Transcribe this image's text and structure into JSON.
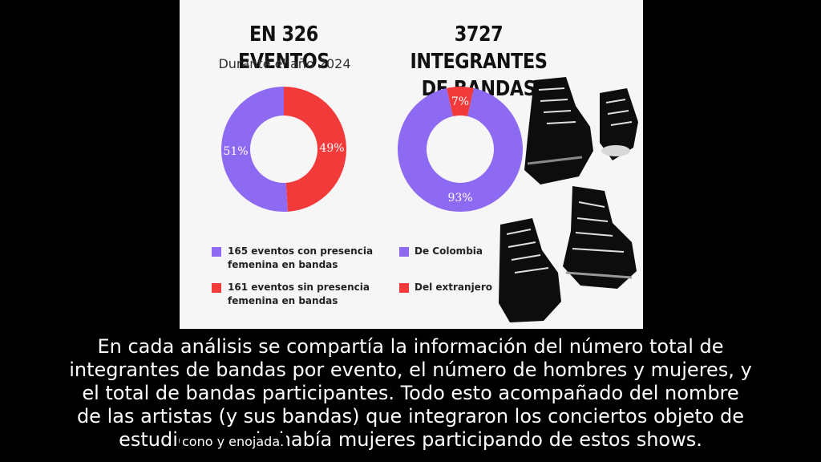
{
  "slide": {
    "left_title": "EN 326 EVENTOS",
    "left_subtitle": "Durante el año 2024",
    "right_title_line1": "3727 INTEGRANTES",
    "right_title_line2": "DE BANDAS"
  },
  "chart_data": [
    {
      "type": "pie",
      "title": "EN 326 EVENTOS",
      "subtitle": "Durante el año 2024",
      "categories": [
        "165 eventos con presencia femenina en bandas",
        "161 eventos sin presencia femenina en bandas"
      ],
      "values": [
        51,
        49
      ],
      "labels": [
        "51%",
        "49%"
      ],
      "colors": [
        "#8e6af2",
        "#f23a3a"
      ],
      "legend_line1": [
        "165 eventos con presencia",
        "161 eventos sin presencia"
      ],
      "legend_line2": [
        "femenina en bandas",
        "femenina en bandas"
      ]
    },
    {
      "type": "pie",
      "title": "3727 INTEGRANTES DE BANDAS",
      "categories": [
        "De Colombia",
        "Del extranjero"
      ],
      "values": [
        93,
        7
      ],
      "labels": [
        "93%",
        "7%"
      ],
      "colors": [
        "#8e6af2",
        "#f23a3a"
      ]
    }
  ],
  "caption": {
    "line1": "En cada análisis se compartía la información del número total de",
    "line2": "integrantes de bandas por evento, el número de hombres y mujeres, y",
    "line3": "el total de bandas participantes. Todo esto acompañado del nombre",
    "line4": "de las artistas (y sus bandas) que integraron los conciertos objeto de",
    "line5": "estudio, cuando había mujeres participando de estos shows."
  },
  "closed_caption": "cono y enojada."
}
